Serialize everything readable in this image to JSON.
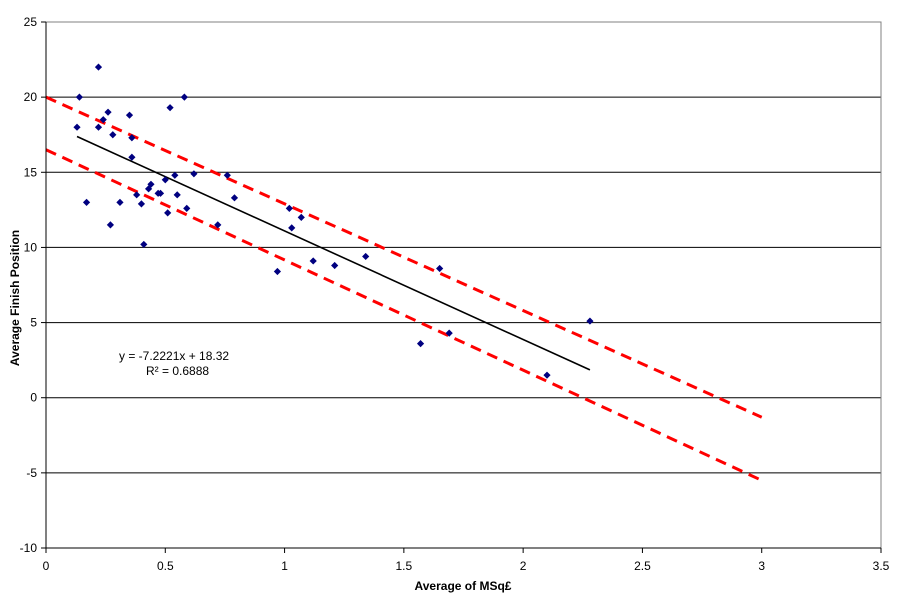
{
  "chart_data": {
    "type": "scatter",
    "xlabel": "Average of MSq£",
    "ylabel": "Average Finish Position",
    "xlim": [
      0,
      3.5
    ],
    "ylim": [
      -10,
      25
    ],
    "x_ticks": [
      0,
      0.5,
      1,
      1.5,
      2,
      2.5,
      3,
      3.5
    ],
    "x_tick_labels": [
      "0",
      "0.5",
      "1",
      "1.5",
      "2",
      "2.5",
      "3",
      "3.5"
    ],
    "y_ticks": [
      -10,
      -5,
      0,
      5,
      10,
      15,
      20,
      25
    ],
    "y_tick_labels": [
      "-10",
      "-5",
      "0",
      "5",
      "10",
      "15",
      "20",
      "25"
    ],
    "horizontal_grid": true,
    "vertical_grid": false,
    "legend": "none",
    "annotation": {
      "equation": "y = -7.2221x + 18.32",
      "r_squared": "R² = 0.6888"
    },
    "colors": {
      "points": "#000080",
      "trendline": "#000000",
      "bounds": "#ff0000",
      "grid": "#000000"
    },
    "series": [
      {
        "type": "scatter",
        "points": [
          [
            0.13,
            18.0
          ],
          [
            0.14,
            20.0
          ],
          [
            0.17,
            13.0
          ],
          [
            0.22,
            18.0
          ],
          [
            0.22,
            22.0
          ],
          [
            0.24,
            18.5
          ],
          [
            0.26,
            19.0
          ],
          [
            0.27,
            11.5
          ],
          [
            0.28,
            17.5
          ],
          [
            0.31,
            13.0
          ],
          [
            0.35,
            18.8
          ],
          [
            0.36,
            17.3
          ],
          [
            0.36,
            16.0
          ],
          [
            0.38,
            13.5
          ],
          [
            0.4,
            12.9
          ],
          [
            0.41,
            10.2
          ],
          [
            0.43,
            13.9
          ],
          [
            0.44,
            14.2
          ],
          [
            0.47,
            13.6
          ],
          [
            0.48,
            13.6
          ],
          [
            0.5,
            14.5
          ],
          [
            0.51,
            12.3
          ],
          [
            0.52,
            19.3
          ],
          [
            0.54,
            14.8
          ],
          [
            0.55,
            13.5
          ],
          [
            0.58,
            20.0
          ],
          [
            0.59,
            12.6
          ],
          [
            0.62,
            14.9
          ],
          [
            0.72,
            11.5
          ],
          [
            0.76,
            14.8
          ],
          [
            0.79,
            13.3
          ],
          [
            0.97,
            8.4
          ],
          [
            1.02,
            12.6
          ],
          [
            1.03,
            11.3
          ],
          [
            1.07,
            12.0
          ],
          [
            1.12,
            9.1
          ],
          [
            1.21,
            8.8
          ],
          [
            1.34,
            9.4
          ],
          [
            1.57,
            3.6
          ],
          [
            1.65,
            8.6
          ],
          [
            1.69,
            4.3
          ],
          [
            2.1,
            1.5
          ],
          [
            2.28,
            5.1
          ]
        ]
      },
      {
        "type": "line",
        "style": "solid",
        "points": [
          [
            0.13,
            17.38
          ],
          [
            2.28,
            1.85
          ]
        ]
      },
      {
        "type": "line",
        "style": "dashed",
        "points": [
          [
            0.0,
            20.0
          ],
          [
            3.0,
            -1.3
          ]
        ]
      },
      {
        "type": "line",
        "style": "dashed",
        "points": [
          [
            0.0,
            16.5
          ],
          [
            3.0,
            -5.5
          ]
        ]
      }
    ]
  }
}
